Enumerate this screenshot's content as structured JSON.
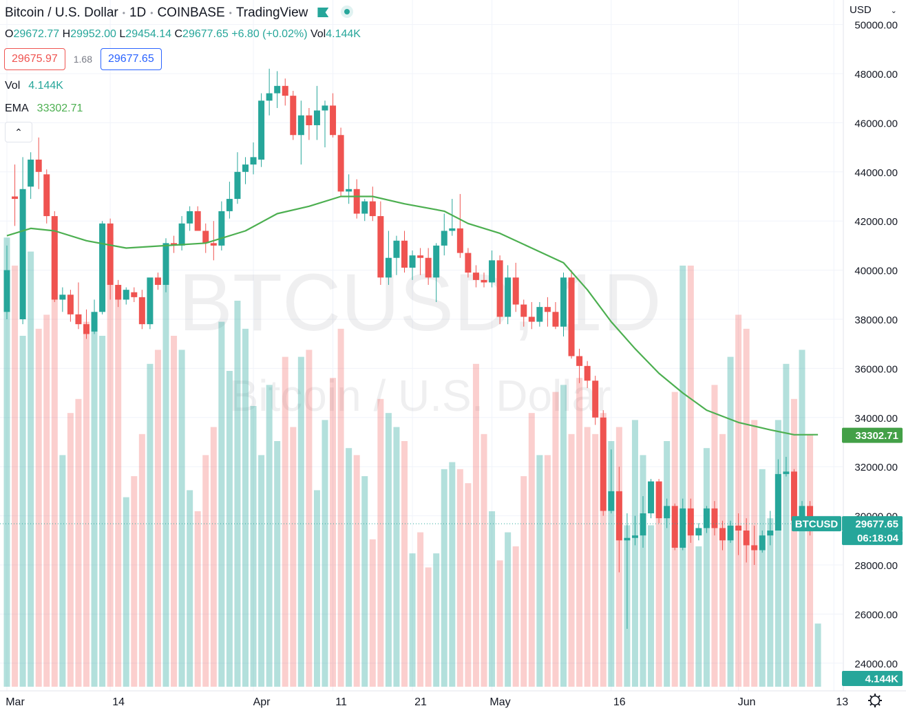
{
  "header": {
    "title": "Bitcoin / U.S. Dollar",
    "interval": "1D",
    "exchange": "COINBASE",
    "source": "TradingView",
    "currency": "USD"
  },
  "ohlc": {
    "o_label": "O",
    "o": "29672.77",
    "h_label": "H",
    "h": "29952.00",
    "l_label": "L",
    "l": "29454.14",
    "c_label": "C",
    "c": "29677.65",
    "change": "+6.80 (+0.02%)",
    "vol_label": "Vol",
    "vol": "4.144K"
  },
  "quote": {
    "bid": "29675.97",
    "spread": "1.68",
    "ask": "29677.65"
  },
  "indicators": [
    {
      "name": "Vol",
      "value": "4.144K"
    },
    {
      "name": "EMA",
      "value": "33302.71"
    }
  ],
  "collapse_glyph": "⌃",
  "watermark": {
    "symbol": "BTCUSD, 1D",
    "description": "Bitcoin / U.S. Dollar"
  },
  "price_tags": {
    "ema": "33302.71",
    "symbol": "BTCUSD",
    "last": "29677.65",
    "countdown": "06:18:04",
    "volume": "4.144K"
  },
  "colors": {
    "up": "#26a69a",
    "down": "#ef5350",
    "ema": "#4caf50"
  },
  "chart_data": {
    "type": "candlestick",
    "y_axis": {
      "min": 23500,
      "max": 50500,
      "ticks": [
        24000,
        26000,
        28000,
        30000,
        32000,
        34000,
        36000,
        38000,
        40000,
        42000,
        44000,
        46000,
        48000,
        50000
      ],
      "decimals": 2
    },
    "x_ticks": [
      {
        "label": "Mar",
        "day": 0
      },
      {
        "label": "14",
        "day": 13
      },
      {
        "label": "Apr",
        "day": 31
      },
      {
        "label": "11",
        "day": 41
      },
      {
        "label": "21",
        "day": 51
      },
      {
        "label": "May",
        "day": 61
      },
      {
        "label": "16",
        "day": 76
      },
      {
        "label": "Jun",
        "day": 92
      },
      {
        "label": "13",
        "day": 104
      }
    ],
    "candles": [
      {
        "day": 0,
        "o": 38300,
        "h": 41000,
        "l": 38000,
        "c": 40000
      },
      {
        "day": 1,
        "o": 43000,
        "h": 44300,
        "l": 41800,
        "c": 42900
      },
      {
        "day": 2,
        "o": 38000,
        "h": 44600,
        "l": 37800,
        "c": 43300
      },
      {
        "day": 3,
        "o": 43400,
        "h": 44800,
        "l": 42900,
        "c": 44500
      },
      {
        "day": 4,
        "o": 44500,
        "h": 45400,
        "l": 43300,
        "c": 44000
      },
      {
        "day": 5,
        "o": 43900,
        "h": 44100,
        "l": 41900,
        "c": 42200
      },
      {
        "day": 6,
        "o": 42200,
        "h": 42400,
        "l": 38700,
        "c": 38800
      },
      {
        "day": 7,
        "o": 38800,
        "h": 39300,
        "l": 38300,
        "c": 39000
      },
      {
        "day": 8,
        "o": 39000,
        "h": 39200,
        "l": 37900,
        "c": 38200
      },
      {
        "day": 9,
        "o": 38200,
        "h": 39500,
        "l": 37600,
        "c": 37800
      },
      {
        "day": 10,
        "o": 37800,
        "h": 38400,
        "l": 37200,
        "c": 37400
      },
      {
        "day": 11,
        "o": 37500,
        "h": 38800,
        "l": 37400,
        "c": 38300
      },
      {
        "day": 12,
        "o": 38300,
        "h": 42000,
        "l": 38200,
        "c": 41900
      },
      {
        "day": 13,
        "o": 41900,
        "h": 42100,
        "l": 38800,
        "c": 39400
      },
      {
        "day": 14,
        "o": 39400,
        "h": 39600,
        "l": 38500,
        "c": 38800
      },
      {
        "day": 15,
        "o": 38800,
        "h": 39300,
        "l": 38600,
        "c": 39200
      },
      {
        "day": 16,
        "o": 39100,
        "h": 39300,
        "l": 38700,
        "c": 38900
      },
      {
        "day": 17,
        "o": 38900,
        "h": 39200,
        "l": 37600,
        "c": 37800
      },
      {
        "day": 18,
        "o": 37800,
        "h": 39600,
        "l": 37600,
        "c": 39700
      },
      {
        "day": 19,
        "o": 39700,
        "h": 39900,
        "l": 39200,
        "c": 39400
      },
      {
        "day": 20,
        "o": 39400,
        "h": 41300,
        "l": 39100,
        "c": 41100
      },
      {
        "day": 21,
        "o": 41100,
        "h": 41400,
        "l": 40700,
        "c": 41000
      },
      {
        "day": 22,
        "o": 41000,
        "h": 42200,
        "l": 40800,
        "c": 41900
      },
      {
        "day": 23,
        "o": 41900,
        "h": 42600,
        "l": 41600,
        "c": 42400
      },
      {
        "day": 24,
        "o": 42400,
        "h": 42600,
        "l": 41600,
        "c": 41600
      },
      {
        "day": 25,
        "o": 41600,
        "h": 41900,
        "l": 40700,
        "c": 41100
      },
      {
        "day": 26,
        "o": 41100,
        "h": 42000,
        "l": 40400,
        "c": 41000
      },
      {
        "day": 27,
        "o": 41000,
        "h": 42800,
        "l": 40800,
        "c": 42400
      },
      {
        "day": 28,
        "o": 42400,
        "h": 43600,
        "l": 42100,
        "c": 42900
      },
      {
        "day": 29,
        "o": 42900,
        "h": 44800,
        "l": 42700,
        "c": 44000
      },
      {
        "day": 30,
        "o": 44000,
        "h": 44600,
        "l": 43500,
        "c": 44300
      },
      {
        "day": 31,
        "o": 44300,
        "h": 45200,
        "l": 43900,
        "c": 44600
      },
      {
        "day": 32,
        "o": 44500,
        "h": 47200,
        "l": 44200,
        "c": 46900
      },
      {
        "day": 33,
        "o": 46900,
        "h": 48200,
        "l": 46300,
        "c": 47200
      },
      {
        "day": 34,
        "o": 47200,
        "h": 48100,
        "l": 46600,
        "c": 47500
      },
      {
        "day": 35,
        "o": 47500,
        "h": 47800,
        "l": 46700,
        "c": 47100
      },
      {
        "day": 36,
        "o": 47100,
        "h": 47300,
        "l": 45300,
        "c": 45500
      },
      {
        "day": 37,
        "o": 45500,
        "h": 46900,
        "l": 44300,
        "c": 46300
      },
      {
        "day": 38,
        "o": 46300,
        "h": 46600,
        "l": 45300,
        "c": 45900
      },
      {
        "day": 39,
        "o": 45900,
        "h": 47500,
        "l": 45300,
        "c": 46500
      },
      {
        "day": 40,
        "o": 46500,
        "h": 46900,
        "l": 45000,
        "c": 46700
      },
      {
        "day": 41,
        "o": 46700,
        "h": 47200,
        "l": 45400,
        "c": 45500
      },
      {
        "day": 42,
        "o": 45500,
        "h": 45800,
        "l": 43000,
        "c": 43200
      },
      {
        "day": 43,
        "o": 43200,
        "h": 43900,
        "l": 42700,
        "c": 43300
      },
      {
        "day": 44,
        "o": 43300,
        "h": 43700,
        "l": 42100,
        "c": 42300
      },
      {
        "day": 45,
        "o": 42300,
        "h": 42900,
        "l": 42000,
        "c": 42800
      },
      {
        "day": 46,
        "o": 42800,
        "h": 43400,
        "l": 42000,
        "c": 42200
      },
      {
        "day": 47,
        "o": 42200,
        "h": 42800,
        "l": 39400,
        "c": 39700
      },
      {
        "day": 48,
        "o": 39700,
        "h": 41600,
        "l": 39400,
        "c": 40500
      },
      {
        "day": 49,
        "o": 40500,
        "h": 41400,
        "l": 39800,
        "c": 41200
      },
      {
        "day": 50,
        "o": 41200,
        "h": 41600,
        "l": 39900,
        "c": 40100
      },
      {
        "day": 51,
        "o": 40100,
        "h": 40800,
        "l": 39600,
        "c": 40600
      },
      {
        "day": 52,
        "o": 40600,
        "h": 40900,
        "l": 39800,
        "c": 40500
      },
      {
        "day": 53,
        "o": 40500,
        "h": 40900,
        "l": 39400,
        "c": 39700
      },
      {
        "day": 54,
        "o": 39700,
        "h": 41100,
        "l": 38700,
        "c": 41000
      },
      {
        "day": 55,
        "o": 41000,
        "h": 42300,
        "l": 40600,
        "c": 41600
      },
      {
        "day": 56,
        "o": 41600,
        "h": 42900,
        "l": 41400,
        "c": 41700
      },
      {
        "day": 57,
        "o": 41700,
        "h": 43100,
        "l": 40500,
        "c": 40700
      },
      {
        "day": 58,
        "o": 40700,
        "h": 40900,
        "l": 39700,
        "c": 39900
      },
      {
        "day": 59,
        "o": 39900,
        "h": 40200,
        "l": 39300,
        "c": 39600
      },
      {
        "day": 60,
        "o": 39600,
        "h": 39900,
        "l": 39300,
        "c": 39500
      },
      {
        "day": 61,
        "o": 39500,
        "h": 40800,
        "l": 39300,
        "c": 40400
      },
      {
        "day": 62,
        "o": 40400,
        "h": 40600,
        "l": 37800,
        "c": 38100
      },
      {
        "day": 63,
        "o": 38100,
        "h": 40200,
        "l": 37800,
        "c": 39700
      },
      {
        "day": 64,
        "o": 39700,
        "h": 40300,
        "l": 38300,
        "c": 38600
      },
      {
        "day": 65,
        "o": 38600,
        "h": 38800,
        "l": 37700,
        "c": 38100
      },
      {
        "day": 66,
        "o": 38100,
        "h": 38700,
        "l": 37600,
        "c": 37900
      },
      {
        "day": 67,
        "o": 37900,
        "h": 38700,
        "l": 37700,
        "c": 38500
      },
      {
        "day": 68,
        "o": 38500,
        "h": 38900,
        "l": 37700,
        "c": 38300
      },
      {
        "day": 69,
        "o": 38300,
        "h": 38700,
        "l": 37600,
        "c": 37700
      },
      {
        "day": 70,
        "o": 37700,
        "h": 39900,
        "l": 37300,
        "c": 39700
      },
      {
        "day": 71,
        "o": 39700,
        "h": 40000,
        "l": 36400,
        "c": 36500
      },
      {
        "day": 72,
        "o": 36500,
        "h": 36800,
        "l": 35400,
        "c": 36100
      },
      {
        "day": 73,
        "o": 36100,
        "h": 36300,
        "l": 35200,
        "c": 35500
      },
      {
        "day": 74,
        "o": 35500,
        "h": 35700,
        "l": 33700,
        "c": 34000
      },
      {
        "day": 75,
        "o": 34000,
        "h": 34300,
        "l": 30000,
        "c": 30200
      },
      {
        "day": 76,
        "o": 30200,
        "h": 32700,
        "l": 30100,
        "c": 31000
      },
      {
        "day": 77,
        "o": 31000,
        "h": 32000,
        "l": 27700,
        "c": 29000
      },
      {
        "day": 78,
        "o": 29000,
        "h": 30100,
        "l": 25400,
        "c": 29100
      },
      {
        "day": 79,
        "o": 29100,
        "h": 30000,
        "l": 28800,
        "c": 29200
      },
      {
        "day": 80,
        "o": 29200,
        "h": 30800,
        "l": 28700,
        "c": 30100
      },
      {
        "day": 81,
        "o": 30100,
        "h": 31500,
        "l": 29900,
        "c": 31400
      },
      {
        "day": 82,
        "o": 31400,
        "h": 31500,
        "l": 29700,
        "c": 29900
      },
      {
        "day": 83,
        "o": 29900,
        "h": 30700,
        "l": 29500,
        "c": 30400
      },
      {
        "day": 84,
        "o": 30400,
        "h": 30500,
        "l": 28600,
        "c": 28700
      },
      {
        "day": 85,
        "o": 28700,
        "h": 30700,
        "l": 28600,
        "c": 30300
      },
      {
        "day": 86,
        "o": 30300,
        "h": 30700,
        "l": 28900,
        "c": 29200
      },
      {
        "day": 87,
        "o": 29200,
        "h": 29700,
        "l": 29000,
        "c": 29500
      },
      {
        "day": 88,
        "o": 29500,
        "h": 30400,
        "l": 29300,
        "c": 30300
      },
      {
        "day": 89,
        "o": 30300,
        "h": 30600,
        "l": 29200,
        "c": 29500
      },
      {
        "day": 90,
        "o": 29500,
        "h": 29800,
        "l": 28600,
        "c": 29000
      },
      {
        "day": 91,
        "o": 29000,
        "h": 29800,
        "l": 28900,
        "c": 29600
      },
      {
        "day": 92,
        "o": 29600,
        "h": 30100,
        "l": 28400,
        "c": 29400
      },
      {
        "day": 93,
        "o": 29400,
        "h": 29900,
        "l": 28100,
        "c": 28800
      },
      {
        "day": 94,
        "o": 28800,
        "h": 29600,
        "l": 28000,
        "c": 28600
      },
      {
        "day": 95,
        "o": 28600,
        "h": 29400,
        "l": 28500,
        "c": 29200
      },
      {
        "day": 96,
        "o": 29200,
        "h": 30200,
        "l": 28800,
        "c": 29400
      },
      {
        "day": 97,
        "o": 29400,
        "h": 32300,
        "l": 29400,
        "c": 31700
      },
      {
        "day": 98,
        "o": 31700,
        "h": 32400,
        "l": 31600,
        "c": 31800
      },
      {
        "day": 99,
        "o": 31800,
        "h": 31900,
        "l": 29400,
        "c": 29800
      },
      {
        "day": 100,
        "o": 29800,
        "h": 30600,
        "l": 29400,
        "c": 30400
      },
      {
        "day": 101,
        "o": 30400,
        "h": 30600,
        "l": 29200,
        "c": 29700
      },
      {
        "day": 102,
        "o": 29673,
        "h": 29952,
        "l": 29454,
        "c": 29678
      }
    ],
    "volume": [
      6.4,
      6.0,
      5.0,
      6.2,
      5.1,
      5.3,
      6.3,
      3.3,
      3.9,
      4.1,
      5.2,
      5.2,
      5.0,
      6.4,
      5.6,
      2.7,
      3.0,
      3.6,
      4.6,
      4.8,
      6.2,
      5.0,
      4.8,
      2.8,
      2.5,
      3.3,
      3.7,
      5.2,
      4.5,
      5.5,
      5.1,
      4.0,
      3.3,
      4.3,
      3.5,
      4.7,
      3.7,
      4.7,
      4.8,
      2.8,
      3.8,
      4.4,
      5.1,
      3.4,
      3.3,
      3.0,
      2.1,
      4.1,
      3.9,
      3.7,
      3.5,
      1.9,
      2.2,
      1.7,
      1.9,
      3.1,
      3.2,
      3.1,
      2.9,
      4.6,
      3.6,
      2.5,
      1.8,
      2.2,
      2.0,
      3.0,
      3.9,
      3.3,
      3.3,
      4.2,
      4.3,
      3.6,
      4.4,
      3.7,
      3.6,
      3.9,
      3.5,
      3.7,
      2.3,
      3.8,
      3.3,
      2.3,
      2.4,
      3.5,
      4.2,
      6.0,
      6.0,
      2.0,
      3.4,
      4.3,
      3.6,
      4.7,
      5.3,
      5.1,
      3.8,
      3.1,
      2.4,
      3.8,
      4.6,
      4.1,
      4.8,
      3.6,
      0.9
    ],
    "ema": [
      [
        0,
        41400
      ],
      [
        3,
        41700
      ],
      [
        6,
        41600
      ],
      [
        10,
        41200
      ],
      [
        15,
        40900
      ],
      [
        20,
        41000
      ],
      [
        25,
        41100
      ],
      [
        30,
        41600
      ],
      [
        34,
        42300
      ],
      [
        38,
        42600
      ],
      [
        42,
        43000
      ],
      [
        46,
        43000
      ],
      [
        50,
        42700
      ],
      [
        55,
        42400
      ],
      [
        58,
        41900
      ],
      [
        62,
        41500
      ],
      [
        66,
        40900
      ],
      [
        70,
        40300
      ],
      [
        73,
        39200
      ],
      [
        76,
        37900
      ],
      [
        79,
        36800
      ],
      [
        82,
        35800
      ],
      [
        85,
        35000
      ],
      [
        88,
        34300
      ],
      [
        92,
        33800
      ],
      [
        96,
        33500
      ],
      [
        99,
        33300
      ],
      [
        102,
        33303
      ]
    ]
  }
}
